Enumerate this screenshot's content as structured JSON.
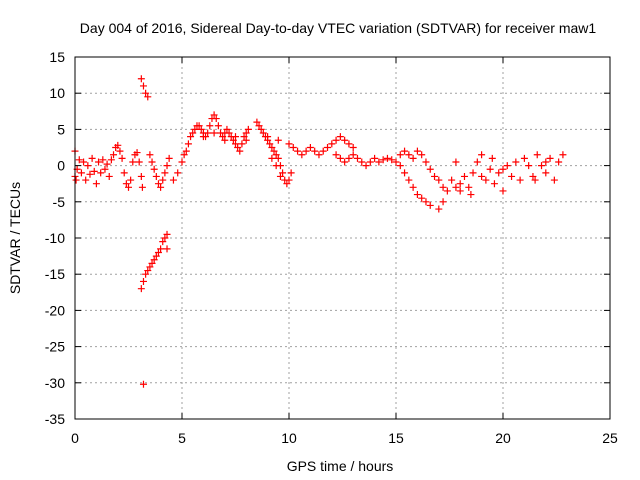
{
  "chart_data": {
    "type": "scatter",
    "title": "Day 004 of 2016, Sidereal Day-to-day VTEC variation (SDTVAR) for receiver maw1",
    "xlabel": "GPS time / hours",
    "ylabel": "SDTVAR / TECUs",
    "xlim": [
      0,
      25
    ],
    "ylim": [
      -35,
      15
    ],
    "xticks": [
      0,
      5,
      10,
      15,
      20,
      25
    ],
    "yticks": [
      15,
      10,
      5,
      0,
      -5,
      -10,
      -15,
      -20,
      -25,
      -30,
      -35
    ],
    "grid": true,
    "marker": "+",
    "color": "#ff0000",
    "series": [
      {
        "name": "SDTVAR",
        "points": [
          [
            0.0,
            2.0
          ],
          [
            0.0,
            -1.5
          ],
          [
            0.05,
            -2.0
          ],
          [
            0.1,
            -0.5
          ],
          [
            0.2,
            0.8
          ],
          [
            0.3,
            -1.0
          ],
          [
            0.4,
            0.5
          ],
          [
            0.5,
            -2.0
          ],
          [
            0.6,
            0.0
          ],
          [
            0.7,
            -1.2
          ],
          [
            0.8,
            1.0
          ],
          [
            0.9,
            -0.8
          ],
          [
            1.0,
            -2.5
          ],
          [
            1.1,
            0.5
          ],
          [
            1.2,
            -1.0
          ],
          [
            1.3,
            0.8
          ],
          [
            1.4,
            -0.5
          ],
          [
            1.5,
            0.2
          ],
          [
            1.6,
            -1.5
          ],
          [
            1.7,
            0.8
          ],
          [
            1.8,
            1.5
          ],
          [
            1.9,
            2.5
          ],
          [
            2.0,
            2.8
          ],
          [
            2.1,
            2.0
          ],
          [
            2.2,
            1.0
          ],
          [
            2.3,
            -1.0
          ],
          [
            2.4,
            -2.5
          ],
          [
            2.5,
            -3.0
          ],
          [
            2.6,
            -2.0
          ],
          [
            2.7,
            0.5
          ],
          [
            2.8,
            1.5
          ],
          [
            2.9,
            1.8
          ],
          [
            3.0,
            0.5
          ],
          [
            3.1,
            -1.5
          ],
          [
            3.15,
            -3.0
          ],
          [
            3.2,
            -30.2
          ],
          [
            3.1,
            12.0
          ],
          [
            3.2,
            11.0
          ],
          [
            3.3,
            10.0
          ],
          [
            3.4,
            9.5
          ],
          [
            3.1,
            -17.0
          ],
          [
            3.2,
            -16.0
          ],
          [
            3.3,
            -15.0
          ],
          [
            3.4,
            -14.5
          ],
          [
            3.5,
            -14.0
          ],
          [
            3.6,
            -13.5
          ],
          [
            3.7,
            -13.0
          ],
          [
            3.8,
            -12.5
          ],
          [
            3.9,
            -12.0
          ],
          [
            4.0,
            -11.5
          ],
          [
            4.1,
            -10.5
          ],
          [
            4.2,
            -10.0
          ],
          [
            4.3,
            -9.5
          ],
          [
            4.3,
            -11.5
          ],
          [
            3.5,
            1.5
          ],
          [
            3.6,
            0.5
          ],
          [
            3.7,
            -0.5
          ],
          [
            3.8,
            -1.5
          ],
          [
            3.9,
            -2.5
          ],
          [
            4.0,
            -3.0
          ],
          [
            4.1,
            -2.0
          ],
          [
            4.2,
            -1.0
          ],
          [
            4.3,
            0.0
          ],
          [
            4.4,
            1.0
          ],
          [
            4.6,
            -2.0
          ],
          [
            4.8,
            -1.0
          ],
          [
            5.0,
            0.5
          ],
          [
            5.1,
            1.5
          ],
          [
            5.2,
            2.0
          ],
          [
            5.3,
            3.0
          ],
          [
            5.4,
            4.0
          ],
          [
            5.5,
            4.5
          ],
          [
            5.6,
            5.0
          ],
          [
            5.7,
            5.5
          ],
          [
            5.8,
            5.5
          ],
          [
            5.9,
            5.0
          ],
          [
            6.0,
            4.5
          ],
          [
            6.1,
            4.0
          ],
          [
            6.2,
            4.5
          ],
          [
            6.3,
            5.5
          ],
          [
            6.4,
            6.5
          ],
          [
            6.5,
            7.0
          ],
          [
            6.6,
            6.5
          ],
          [
            6.7,
            5.5
          ],
          [
            6.8,
            4.5
          ],
          [
            6.9,
            4.0
          ],
          [
            7.0,
            4.5
          ],
          [
            7.1,
            5.0
          ],
          [
            7.2,
            4.5
          ],
          [
            7.3,
            4.0
          ],
          [
            7.4,
            3.5
          ],
          [
            7.5,
            3.0
          ],
          [
            7.6,
            2.5
          ],
          [
            7.7,
            2.0
          ],
          [
            7.8,
            3.0
          ],
          [
            7.9,
            4.0
          ],
          [
            8.0,
            4.5
          ],
          [
            8.1,
            5.0
          ],
          [
            6.0,
            4.0
          ],
          [
            6.5,
            4.5
          ],
          [
            7.0,
            3.5
          ],
          [
            7.5,
            4.0
          ],
          [
            8.0,
            3.5
          ],
          [
            8.5,
            6.0
          ],
          [
            8.6,
            5.5
          ],
          [
            8.7,
            5.0
          ],
          [
            8.8,
            4.5
          ],
          [
            8.9,
            4.0
          ],
          [
            9.0,
            3.5
          ],
          [
            9.1,
            3.0
          ],
          [
            9.2,
            2.5
          ],
          [
            9.3,
            2.0
          ],
          [
            9.4,
            1.5
          ],
          [
            9.5,
            1.0
          ],
          [
            9.6,
            0.0
          ],
          [
            9.7,
            -1.0
          ],
          [
            9.8,
            -2.0
          ],
          [
            9.9,
            -2.5
          ],
          [
            10.0,
            -2.0
          ],
          [
            10.1,
            -1.0
          ],
          [
            9.2,
            1.0
          ],
          [
            9.4,
            0.0
          ],
          [
            9.6,
            -1.5
          ],
          [
            9.0,
            4.0
          ],
          [
            9.5,
            3.5
          ],
          [
            10.0,
            3.0
          ],
          [
            10.2,
            2.5
          ],
          [
            10.4,
            2.0
          ],
          [
            10.6,
            1.5
          ],
          [
            10.8,
            2.0
          ],
          [
            11.0,
            2.5
          ],
          [
            11.2,
            2.0
          ],
          [
            11.4,
            1.5
          ],
          [
            11.6,
            2.0
          ],
          [
            11.8,
            2.5
          ],
          [
            12.0,
            3.0
          ],
          [
            12.2,
            3.5
          ],
          [
            12.4,
            4.0
          ],
          [
            12.6,
            3.5
          ],
          [
            12.8,
            3.0
          ],
          [
            13.0,
            2.5
          ],
          [
            12.2,
            1.5
          ],
          [
            12.4,
            1.0
          ],
          [
            12.6,
            0.5
          ],
          [
            12.8,
            1.0
          ],
          [
            13.0,
            1.5
          ],
          [
            13.2,
            1.0
          ],
          [
            13.4,
            0.5
          ],
          [
            13.6,
            0.0
          ],
          [
            13.8,
            0.5
          ],
          [
            14.0,
            1.0
          ],
          [
            14.2,
            0.5
          ],
          [
            14.4,
            0.8
          ],
          [
            14.6,
            1.0
          ],
          [
            14.8,
            0.8
          ],
          [
            15.0,
            0.5
          ],
          [
            15.2,
            1.5
          ],
          [
            15.4,
            2.0
          ],
          [
            15.6,
            1.5
          ],
          [
            15.8,
            1.0
          ],
          [
            16.0,
            2.0
          ],
          [
            16.2,
            1.5
          ],
          [
            16.4,
            0.5
          ],
          [
            16.6,
            -0.5
          ],
          [
            16.8,
            -1.5
          ],
          [
            17.0,
            -2.0
          ],
          [
            17.2,
            -3.0
          ],
          [
            17.4,
            -3.5
          ],
          [
            15.2,
            0.0
          ],
          [
            15.4,
            -1.0
          ],
          [
            15.6,
            -2.0
          ],
          [
            15.8,
            -3.0
          ],
          [
            16.0,
            -4.0
          ],
          [
            16.2,
            -4.5
          ],
          [
            16.4,
            -5.0
          ],
          [
            16.6,
            -5.5
          ],
          [
            17.0,
            -6.0
          ],
          [
            17.2,
            -5.0
          ],
          [
            17.6,
            -2.0
          ],
          [
            17.8,
            -3.0
          ],
          [
            18.0,
            -2.5
          ],
          [
            18.2,
            -1.5
          ],
          [
            18.4,
            -3.0
          ],
          [
            18.6,
            -1.0
          ],
          [
            18.8,
            0.5
          ],
          [
            19.0,
            -1.5
          ],
          [
            19.2,
            -2.0
          ],
          [
            19.4,
            -0.5
          ],
          [
            19.6,
            -2.5
          ],
          [
            19.8,
            -1.0
          ],
          [
            20.0,
            -3.5
          ],
          [
            20.2,
            0.0
          ],
          [
            20.4,
            -1.5
          ],
          [
            20.6,
            0.5
          ],
          [
            20.8,
            -2.0
          ],
          [
            21.0,
            1.0
          ],
          [
            21.2,
            0.0
          ],
          [
            21.4,
            -1.5
          ],
          [
            21.6,
            1.5
          ],
          [
            21.8,
            0.0
          ],
          [
            22.0,
            -1.0
          ],
          [
            22.2,
            1.0
          ],
          [
            22.4,
            -2.0
          ],
          [
            22.6,
            0.5
          ],
          [
            22.8,
            1.5
          ],
          [
            17.8,
            0.5
          ],
          [
            18.0,
            -3.5
          ],
          [
            18.5,
            -4.0
          ],
          [
            19.0,
            1.5
          ],
          [
            19.5,
            1.0
          ],
          [
            20.0,
            -0.5
          ],
          [
            21.5,
            -2.0
          ],
          [
            22.0,
            0.5
          ]
        ]
      }
    ]
  }
}
